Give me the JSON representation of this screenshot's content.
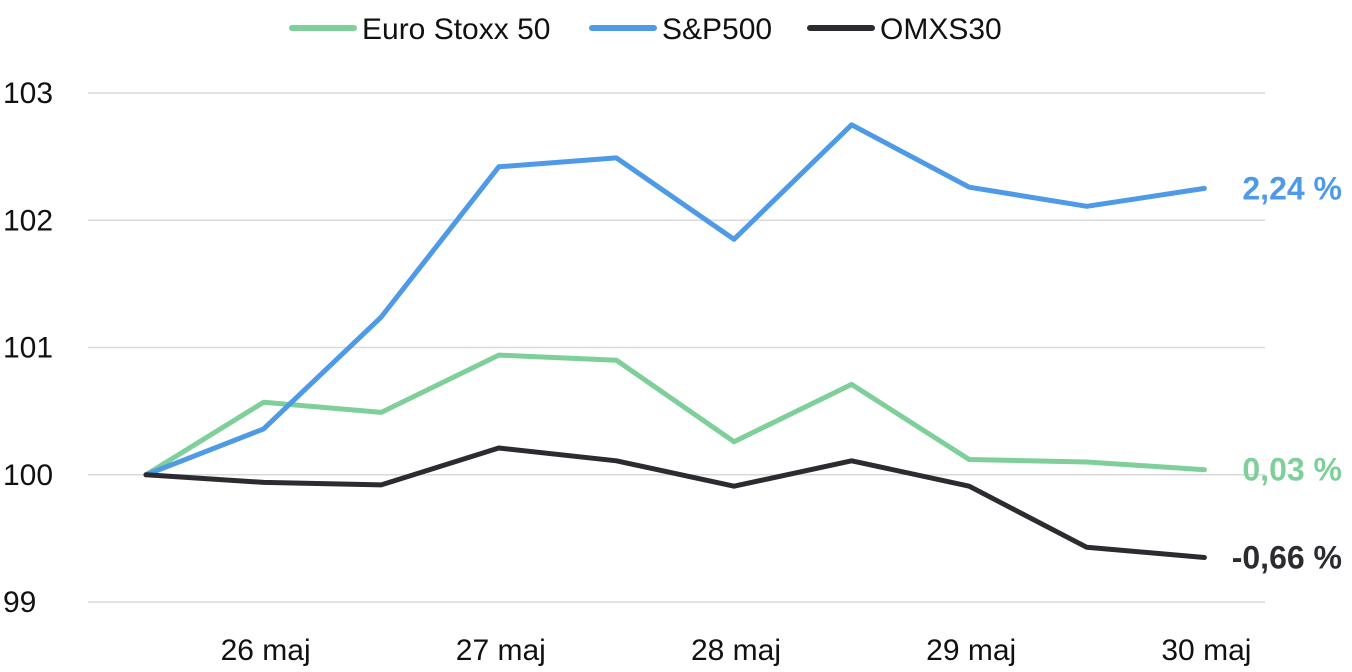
{
  "chart_data": {
    "type": "line",
    "title": "",
    "xlabel": "",
    "ylabel": "",
    "ylim": [
      99,
      103
    ],
    "y_ticks": [
      "99",
      "100",
      "101",
      "102",
      "103"
    ],
    "x_tick_labels": [
      "26 maj",
      "27 maj",
      "28 maj",
      "29 maj",
      "30 maj"
    ],
    "grid": "horizontal",
    "legend_position": "top",
    "series": [
      {
        "name": "Euro Stoxx 50",
        "color": "#7fcf9a",
        "values": [
          100.0,
          100.57,
          100.49,
          100.94,
          100.9,
          100.26,
          100.71,
          100.12,
          100.1,
          100.04
        ],
        "end_label": "0,03 %"
      },
      {
        "name": "S&P500",
        "color": "#4f9ae6",
        "values": [
          100.0,
          100.36,
          101.24,
          102.42,
          102.49,
          101.85,
          102.75,
          102.26,
          102.11,
          102.25
        ],
        "end_label": "2,24 %"
      },
      {
        "name": "OMXS30",
        "color": "#2b2b30",
        "values": [
          100.0,
          99.94,
          99.92,
          100.21,
          100.11,
          99.91,
          100.11,
          99.91,
          99.43,
          99.35
        ],
        "end_label": "-0,66 %"
      }
    ]
  }
}
